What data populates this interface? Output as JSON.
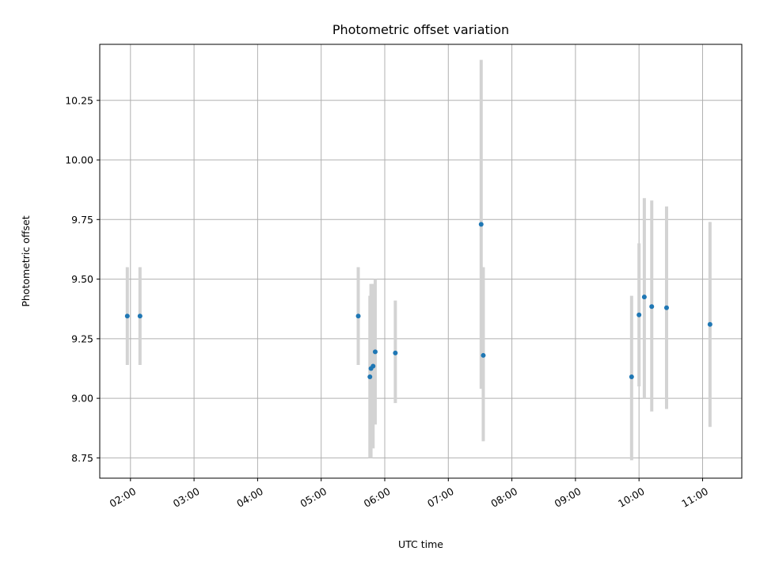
{
  "chart_data": {
    "type": "scatter",
    "title": "Photometric offset variation",
    "xlabel": "UTC time",
    "ylabel": "Photometric offset",
    "xlim": [
      "01:31",
      "11:37"
    ],
    "ylim": [
      8.665,
      10.485
    ],
    "x_ticks": [
      "02:00",
      "03:00",
      "04:00",
      "05:00",
      "06:00",
      "07:00",
      "08:00",
      "09:00",
      "10:00",
      "11:00"
    ],
    "y_ticks": [
      8.75,
      9.0,
      9.25,
      9.5,
      9.75,
      10.0,
      10.25
    ],
    "y_tick_labels": [
      "8.75",
      "9.00",
      "9.25",
      "9.50",
      "9.75",
      "10.00",
      "10.25"
    ],
    "grid": true,
    "marker_color": "#1f77b4",
    "errorbar_color": "#d3d3d3",
    "points": [
      {
        "x": "01:57",
        "y": 9.345,
        "ylo": 9.14,
        "yhi": 9.55
      },
      {
        "x": "02:09",
        "y": 9.345,
        "ylo": 9.14,
        "yhi": 9.55
      },
      {
        "x": "05:35",
        "y": 9.345,
        "ylo": 9.14,
        "yhi": 9.55
      },
      {
        "x": "05:46",
        "y": 9.09,
        "ylo": 8.75,
        "yhi": 9.43
      },
      {
        "x": "05:47",
        "y": 9.125,
        "ylo": 8.75,
        "yhi": 9.48
      },
      {
        "x": "05:49",
        "y": 9.135,
        "ylo": 8.79,
        "yhi": 9.48
      },
      {
        "x": "05:51",
        "y": 9.195,
        "ylo": 8.89,
        "yhi": 9.5
      },
      {
        "x": "06:10",
        "y": 9.19,
        "ylo": 8.98,
        "yhi": 9.41
      },
      {
        "x": "07:31",
        "y": 9.73,
        "ylo": 9.04,
        "yhi": 10.42
      },
      {
        "x": "07:33",
        "y": 9.18,
        "ylo": 8.82,
        "yhi": 9.55
      },
      {
        "x": "09:53",
        "y": 9.09,
        "ylo": 8.74,
        "yhi": 9.43
      },
      {
        "x": "10:00",
        "y": 9.35,
        "ylo": 9.05,
        "yhi": 9.65
      },
      {
        "x": "10:05",
        "y": 9.425,
        "ylo": 9.0,
        "yhi": 9.84
      },
      {
        "x": "10:12",
        "y": 9.385,
        "ylo": 8.945,
        "yhi": 9.83
      },
      {
        "x": "10:26",
        "y": 9.38,
        "ylo": 8.955,
        "yhi": 9.805
      },
      {
        "x": "11:07",
        "y": 9.31,
        "ylo": 8.88,
        "yhi": 9.74
      }
    ]
  }
}
